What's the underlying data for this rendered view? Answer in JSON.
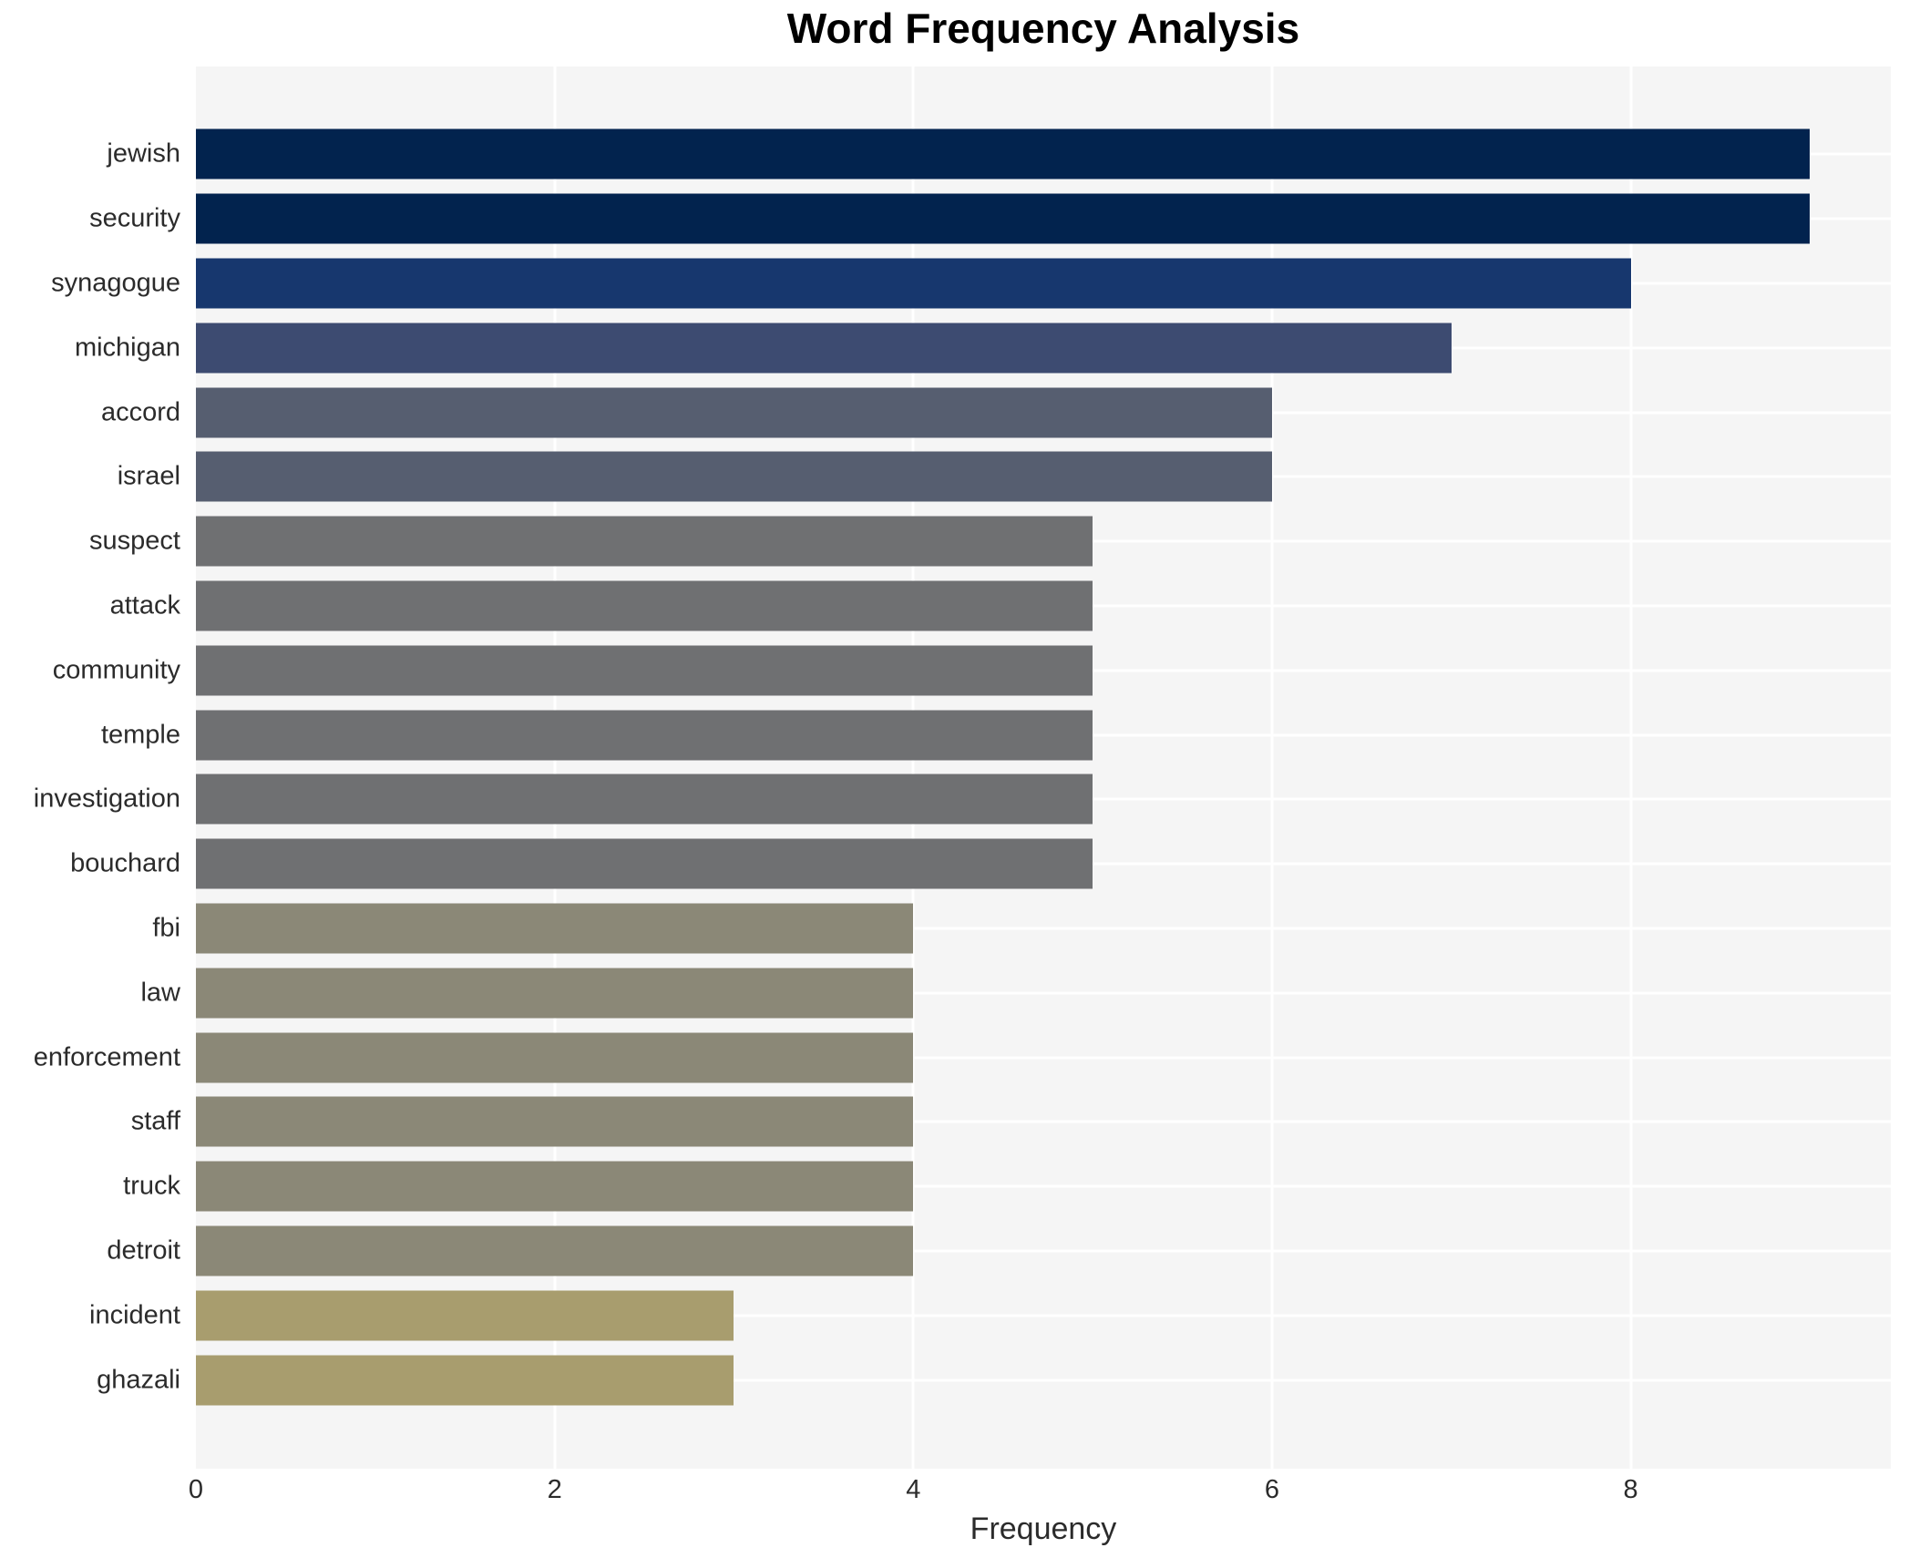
{
  "chart_data": {
    "type": "bar",
    "orientation": "horizontal",
    "title": "Word Frequency Analysis",
    "xlabel": "Frequency",
    "ylabel": "",
    "xlim": [
      0,
      9.45
    ],
    "xticks": [
      0,
      2,
      4,
      6,
      8
    ],
    "grid": true,
    "legend": "none",
    "plot_background": "#f5f5f5",
    "grid_color": "#ffffff",
    "title_color": "#000000",
    "tick_color": "#2b2b2b",
    "categories": [
      "jewish",
      "security",
      "synagogue",
      "michigan",
      "accord",
      "israel",
      "suspect",
      "attack",
      "community",
      "temple",
      "investigation",
      "bouchard",
      "fbi",
      "law",
      "enforcement",
      "staff",
      "truck",
      "detroit",
      "incident",
      "ghazali"
    ],
    "values": [
      9,
      9,
      8,
      7,
      6,
      6,
      5,
      5,
      5,
      5,
      5,
      5,
      4,
      4,
      4,
      4,
      4,
      4,
      3,
      3
    ],
    "bar_colors": [
      "#02234e",
      "#02234e",
      "#17376e",
      "#3d4b71",
      "#565e70",
      "#565e70",
      "#6f7072",
      "#6f7072",
      "#6f7072",
      "#6f7072",
      "#6f7072",
      "#6f7072",
      "#8b8877",
      "#8b8877",
      "#8b8877",
      "#8b8877",
      "#8b8877",
      "#8b8877",
      "#a89d6e",
      "#a89d6e"
    ]
  }
}
